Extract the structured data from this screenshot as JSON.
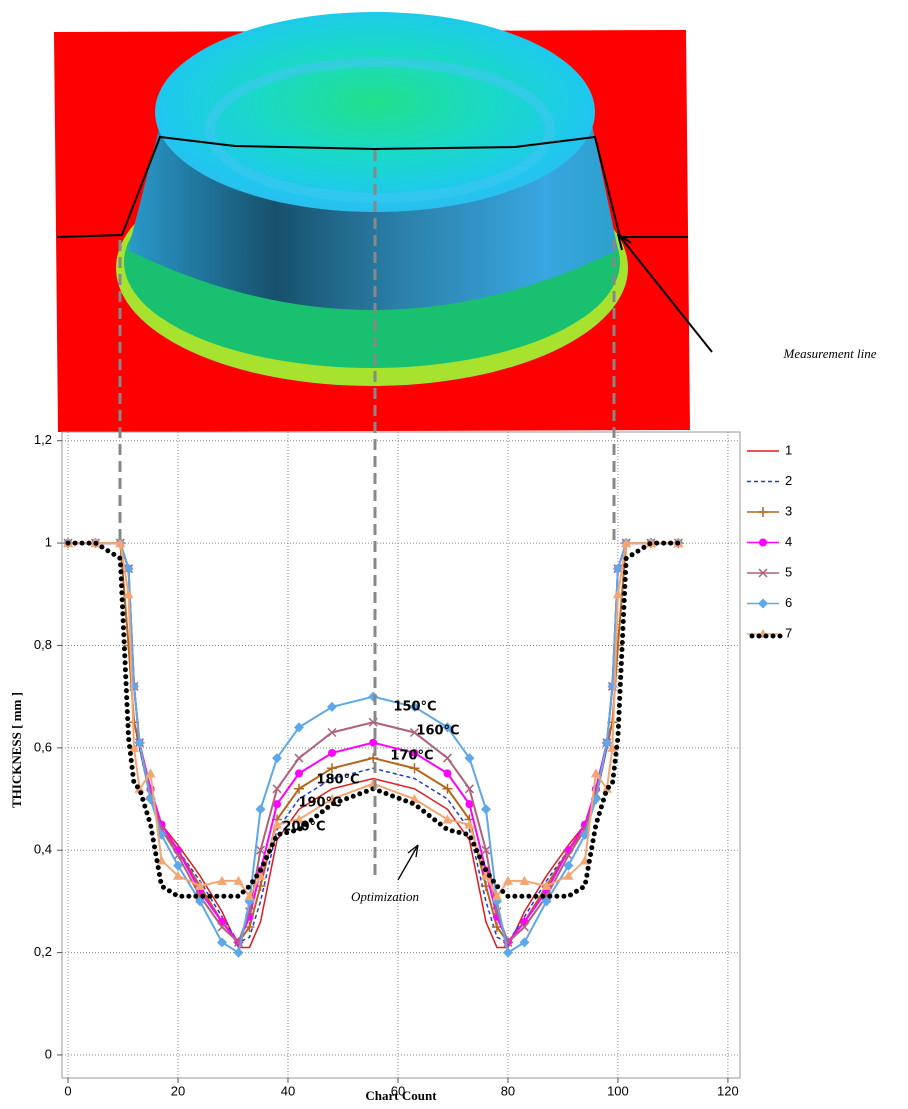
{
  "chart_data": {
    "type": "line",
    "xlabel": "Chart Count",
    "ylabel": "THICKNESS [ mm ]",
    "x": [
      0,
      5,
      9.5,
      11,
      12,
      13,
      15,
      17,
      20,
      24,
      28,
      31,
      33,
      35,
      38,
      42,
      48,
      55.5,
      63,
      69,
      73,
      76,
      78,
      80,
      83,
      87,
      91,
      94,
      96,
      98,
      99,
      100,
      101.5,
      106,
      111
    ],
    "xlim": [
      -1.1,
      122.2
    ],
    "xticks": [
      0,
      20,
      40,
      60,
      80,
      100,
      120
    ],
    "ylim": [
      -0.045,
      1.217
    ],
    "yticks": [
      0,
      {
        "value": 0.2,
        "label": "0,2"
      },
      {
        "value": 0.4,
        "label": "0,4"
      },
      {
        "value": 0.6,
        "label": "0,6"
      },
      {
        "value": 0.8,
        "label": "0,8"
      },
      1,
      {
        "value": 1.2,
        "label": "1,2"
      }
    ],
    "grid": true,
    "legend": "upper right",
    "series": [
      {
        "name": "1",
        "color": "#e3191c",
        "style": "solid",
        "marker": "none",
        "values": [
          1,
          1,
          1,
          0.8,
          0.65,
          0.6,
          0.5,
          0.45,
          0.41,
          0.35,
          0.28,
          0.21,
          0.21,
          0.26,
          0.42,
          0.48,
          0.52,
          0.54,
          0.52,
          0.48,
          0.42,
          0.26,
          0.21,
          0.21,
          0.28,
          0.35,
          0.41,
          0.45,
          0.5,
          0.6,
          0.65,
          0.8,
          1,
          1,
          1
        ]
      },
      {
        "name": "2",
        "color": "#1f3bd6",
        "style": "dashed",
        "marker": "none",
        "values": [
          1,
          1,
          1,
          0.8,
          0.65,
          0.6,
          0.5,
          0.44,
          0.4,
          0.34,
          0.27,
          0.22,
          0.23,
          0.3,
          0.44,
          0.5,
          0.54,
          0.56,
          0.54,
          0.5,
          0.44,
          0.3,
          0.23,
          0.22,
          0.27,
          0.34,
          0.4,
          0.44,
          0.5,
          0.6,
          0.65,
          0.8,
          1,
          1,
          1
        ]
      },
      {
        "name": "3",
        "color": "#b5651d",
        "style": "solid",
        "marker": "plus",
        "values": [
          1,
          1,
          1,
          0.8,
          0.65,
          0.61,
          0.5,
          0.44,
          0.4,
          0.33,
          0.26,
          0.22,
          0.25,
          0.33,
          0.46,
          0.52,
          0.56,
          0.58,
          0.56,
          0.52,
          0.46,
          0.33,
          0.25,
          0.22,
          0.26,
          0.33,
          0.4,
          0.44,
          0.5,
          0.61,
          0.65,
          0.8,
          1,
          1,
          1
        ]
      },
      {
        "name": "4",
        "color": "#ff00ff",
        "style": "solid",
        "marker": "circle",
        "values": [
          1,
          1,
          1,
          0.95,
          0.72,
          0.61,
          0.52,
          0.45,
          0.4,
          0.32,
          0.26,
          0.22,
          0.27,
          0.36,
          0.49,
          0.55,
          0.59,
          0.61,
          0.59,
          0.55,
          0.49,
          0.36,
          0.27,
          0.22,
          0.26,
          0.32,
          0.4,
          0.45,
          0.52,
          0.61,
          0.72,
          0.95,
          1,
          1,
          1
        ]
      },
      {
        "name": "5",
        "color": "#b0607a",
        "style": "solid",
        "marker": "x",
        "values": [
          1,
          1,
          1,
          0.95,
          0.72,
          0.61,
          0.51,
          0.44,
          0.39,
          0.31,
          0.25,
          0.22,
          0.28,
          0.4,
          0.52,
          0.58,
          0.63,
          0.65,
          0.63,
          0.58,
          0.52,
          0.4,
          0.28,
          0.22,
          0.25,
          0.31,
          0.39,
          0.44,
          0.51,
          0.61,
          0.72,
          0.95,
          1,
          1,
          1
        ]
      },
      {
        "name": "6",
        "color": "#5ca8ea",
        "style": "solid",
        "marker": "diamond",
        "values": [
          1,
          1,
          1,
          0.95,
          0.72,
          0.61,
          0.5,
          0.43,
          0.37,
          0.3,
          0.22,
          0.2,
          0.3,
          0.48,
          0.58,
          0.64,
          0.68,
          0.7,
          0.68,
          0.64,
          0.58,
          0.48,
          0.3,
          0.2,
          0.22,
          0.3,
          0.37,
          0.43,
          0.5,
          0.61,
          0.72,
          0.95,
          1,
          1,
          1
        ]
      },
      {
        "name": "7",
        "color": "#f4a672",
        "style": "solid",
        "marker": "triangle",
        "values": [
          1,
          1,
          1,
          0.9,
          0.6,
          0.52,
          0.55,
          0.38,
          0.35,
          0.33,
          0.34,
          0.34,
          0.31,
          0.35,
          0.45,
          0.46,
          0.5,
          0.53,
          0.5,
          0.46,
          0.45,
          0.35,
          0.31,
          0.34,
          0.34,
          0.33,
          0.35,
          0.38,
          0.55,
          0.52,
          0.6,
          0.9,
          1,
          1,
          1
        ]
      },
      {
        "color": "#000000",
        "style": "dotted",
        "marker": "none",
        "values": [
          1,
          1,
          0.97,
          0.62,
          0.53,
          0.52,
          0.45,
          0.33,
          0.31,
          0.31,
          0.31,
          0.31,
          0.33,
          0.36,
          0.43,
          0.44,
          0.49,
          0.52,
          0.49,
          0.44,
          0.43,
          0.36,
          0.33,
          0.31,
          0.31,
          0.31,
          0.31,
          0.33,
          0.45,
          0.52,
          0.53,
          0.62,
          0.97,
          1,
          1
        ]
      }
    ],
    "annotations": [
      "150°C",
      "160°C",
      "170°C",
      "180°C",
      "190°C",
      "200°C",
      "Optimization",
      "Measurement line"
    ]
  }
}
